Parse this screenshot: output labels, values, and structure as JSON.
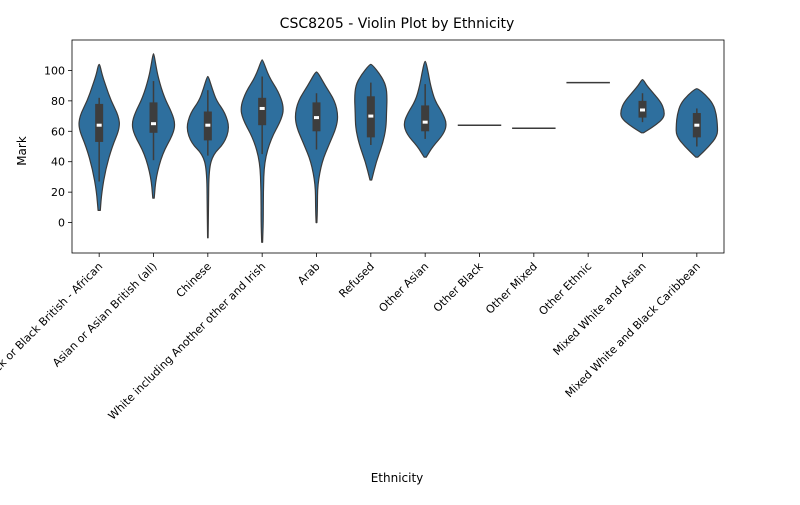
{
  "chart_data": {
    "type": "violin",
    "title": "CSC8205 - Violin Plot by Ethnicity",
    "xlabel": "Ethnicity",
    "ylabel": "Mark",
    "ylim": [
      -20,
      120
    ],
    "yticks": [
      0,
      20,
      40,
      60,
      80,
      100
    ],
    "grid": false,
    "legend": "none",
    "violin_color": "#2e6f9e",
    "edge_color": "#3a3a3a",
    "categories": [
      "Black or Black British - African",
      "Asian or Asian British (all)",
      "Chinese",
      "White including Another other and Irish",
      "Arab",
      "Refused",
      "Other Asian",
      "Other Black",
      "Other Mixed",
      "Other Ethnic",
      "Mixed White and Asian",
      "Mixed White and Black Caribbean"
    ],
    "violins": [
      {
        "min": 8,
        "max": 104,
        "q1": 53,
        "median": 64,
        "q3": 78,
        "whisker_low": 27,
        "whisker_high": 82,
        "profile": [
          [
            8,
            0.05
          ],
          [
            20,
            0.12
          ],
          [
            35,
            0.3
          ],
          [
            50,
            0.6
          ],
          [
            62,
            0.95
          ],
          [
            70,
            0.9
          ],
          [
            80,
            0.55
          ],
          [
            90,
            0.3
          ],
          [
            98,
            0.12
          ],
          [
            104,
            0.03
          ]
        ]
      },
      {
        "min": 16,
        "max": 111,
        "q1": 59,
        "median": 65,
        "q3": 79,
        "whisker_low": 41,
        "whisker_high": 93,
        "profile": [
          [
            16,
            0.03
          ],
          [
            30,
            0.12
          ],
          [
            45,
            0.4
          ],
          [
            58,
            0.9
          ],
          [
            65,
            1.0
          ],
          [
            72,
            0.85
          ],
          [
            82,
            0.5
          ],
          [
            95,
            0.22
          ],
          [
            104,
            0.1
          ],
          [
            111,
            0.02
          ]
        ]
      },
      {
        "min": -10,
        "max": 96,
        "q1": 54,
        "median": 64,
        "q3": 73,
        "whisker_low": 44,
        "whisker_high": 87,
        "profile": [
          [
            -10,
            0.01
          ],
          [
            10,
            0.03
          ],
          [
            35,
            0.05
          ],
          [
            45,
            0.25
          ],
          [
            52,
            0.75
          ],
          [
            62,
            1.0
          ],
          [
            72,
            0.8
          ],
          [
            80,
            0.4
          ],
          [
            88,
            0.2
          ],
          [
            96,
            0.03
          ]
        ]
      },
      {
        "min": -13,
        "max": 107,
        "q1": 64,
        "median": 75,
        "q3": 82,
        "whisker_low": 45,
        "whisker_high": 96,
        "profile": [
          [
            -13,
            0.02
          ],
          [
            0,
            0.05
          ],
          [
            20,
            0.05
          ],
          [
            40,
            0.1
          ],
          [
            55,
            0.4
          ],
          [
            68,
            0.9
          ],
          [
            76,
            1.0
          ],
          [
            86,
            0.75
          ],
          [
            96,
            0.3
          ],
          [
            107,
            0.03
          ]
        ]
      },
      {
        "min": 0,
        "max": 99,
        "q1": 60,
        "median": 69,
        "q3": 79,
        "whisker_low": 48,
        "whisker_high": 85,
        "profile": [
          [
            0,
            0.02
          ],
          [
            10,
            0.04
          ],
          [
            25,
            0.05
          ],
          [
            40,
            0.25
          ],
          [
            52,
            0.6
          ],
          [
            62,
            0.9
          ],
          [
            70,
            1.0
          ],
          [
            80,
            0.85
          ],
          [
            90,
            0.4
          ],
          [
            99,
            0.05
          ]
        ]
      },
      {
        "min": 28,
        "max": 104,
        "q1": 56,
        "median": 70,
        "q3": 83,
        "whisker_low": 51,
        "whisker_high": 92,
        "profile": [
          [
            28,
            0.04
          ],
          [
            40,
            0.25
          ],
          [
            52,
            0.55
          ],
          [
            62,
            0.7
          ],
          [
            72,
            0.72
          ],
          [
            82,
            0.75
          ],
          [
            90,
            0.7
          ],
          [
            97,
            0.45
          ],
          [
            104,
            0.05
          ]
        ]
      },
      {
        "min": 43,
        "max": 106,
        "q1": 60,
        "median": 66,
        "q3": 77,
        "whisker_low": 55,
        "whisker_high": 91,
        "profile": [
          [
            43,
            0.05
          ],
          [
            50,
            0.35
          ],
          [
            58,
            0.85
          ],
          [
            65,
            1.0
          ],
          [
            72,
            0.8
          ],
          [
            80,
            0.45
          ],
          [
            90,
            0.25
          ],
          [
            98,
            0.15
          ],
          [
            106,
            0.03
          ]
        ]
      },
      {
        "single": 64
      },
      {
        "single": 62
      },
      {
        "single": 92
      },
      {
        "min": 59,
        "max": 94,
        "q1": 69,
        "median": 74,
        "q3": 80,
        "whisker_low": 66,
        "whisker_high": 85,
        "profile": [
          [
            59,
            0.05
          ],
          [
            64,
            0.6
          ],
          [
            69,
            1.0
          ],
          [
            74,
            1.0
          ],
          [
            79,
            0.85
          ],
          [
            85,
            0.5
          ],
          [
            90,
            0.2
          ],
          [
            94,
            0.03
          ]
        ]
      },
      {
        "min": 43,
        "max": 88,
        "q1": 56,
        "median": 64,
        "q3": 72,
        "whisker_low": 50,
        "whisker_high": 75,
        "profile": [
          [
            43,
            0.05
          ],
          [
            50,
            0.55
          ],
          [
            57,
            0.95
          ],
          [
            64,
            0.95
          ],
          [
            71,
            0.9
          ],
          [
            78,
            0.75
          ],
          [
            84,
            0.4
          ],
          [
            88,
            0.05
          ]
        ]
      }
    ]
  }
}
